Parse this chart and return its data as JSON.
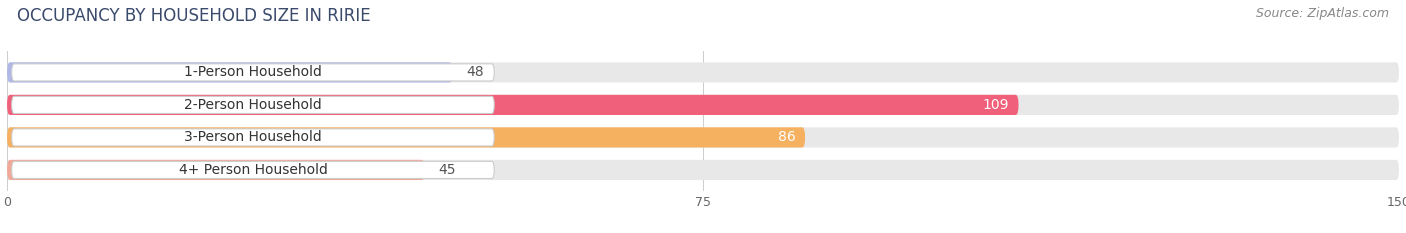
{
  "title": "OCCUPANCY BY HOUSEHOLD SIZE IN RIRIE",
  "source": "Source: ZipAtlas.com",
  "categories": [
    "1-Person Household",
    "2-Person Household",
    "3-Person Household",
    "4+ Person Household"
  ],
  "values": [
    48,
    109,
    86,
    45
  ],
  "bar_colors": [
    "#b0b8e8",
    "#f0607a",
    "#f5b060",
    "#f0a898"
  ],
  "bar_bg_color": "#e8e8e8",
  "value_label_colors": [
    "#555555",
    "#ffffff",
    "#ffffff",
    "#555555"
  ],
  "xlim": [
    0,
    150
  ],
  "xticks": [
    0,
    75,
    150
  ],
  "title_fontsize": 12,
  "source_fontsize": 9,
  "label_fontsize": 10,
  "value_fontsize": 10,
  "background_color": "#ffffff",
  "bar_height": 0.62,
  "bar_bg_max": 150
}
